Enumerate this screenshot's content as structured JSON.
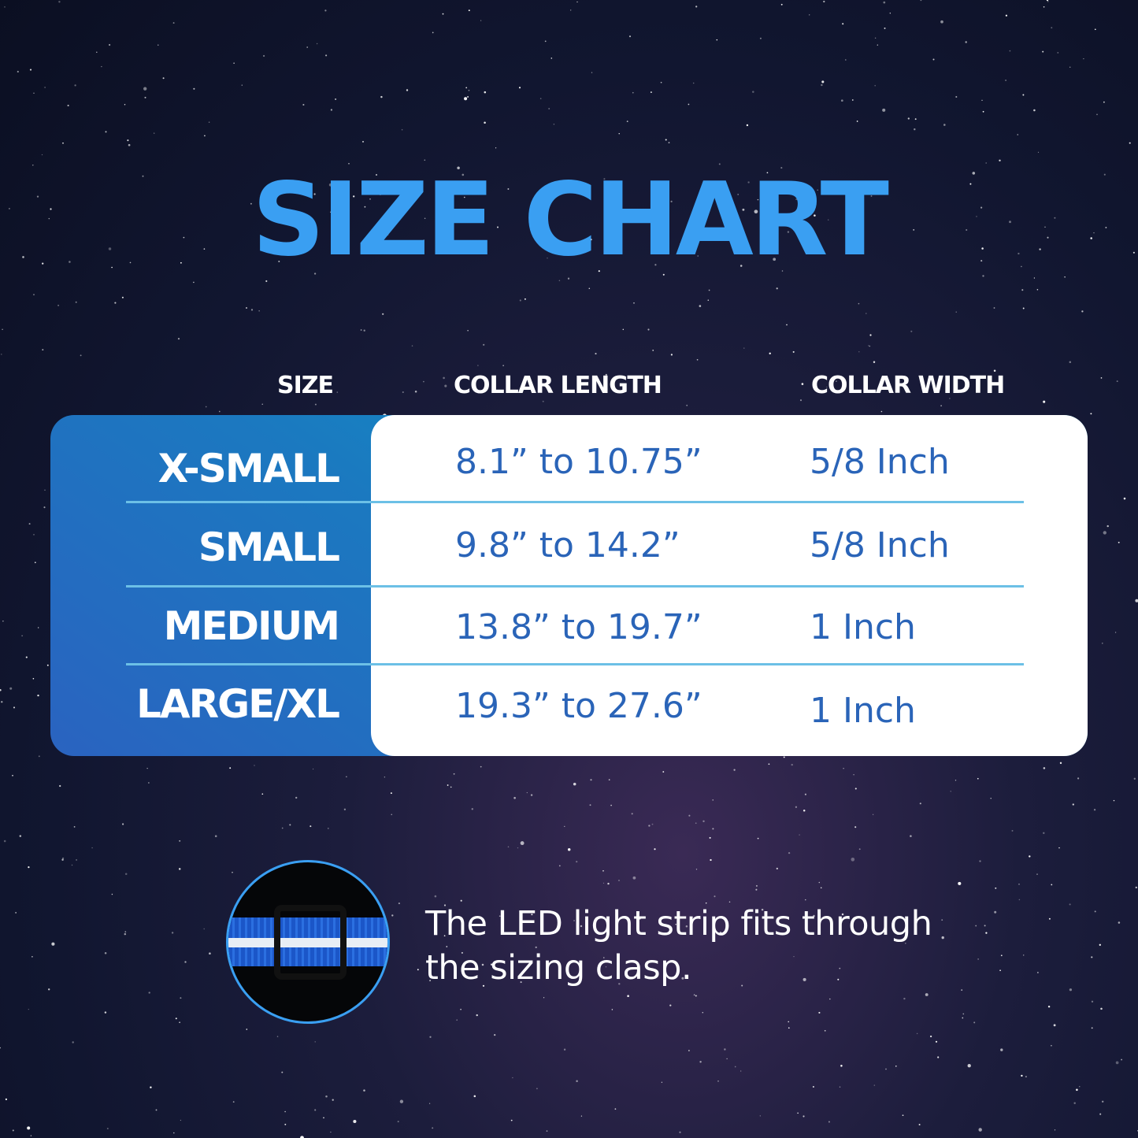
{
  "title": "SIZE CHART",
  "headers": {
    "size": "SIZE",
    "length": "COLLAR LENGTH",
    "width": "COLLAR WIDTH"
  },
  "rows": [
    {
      "size": "X-SMALL",
      "length": "8.1” to 10.75”",
      "width": "5/8 Inch"
    },
    {
      "size": "SMALL",
      "length": "9.8” to 14.2”",
      "width": "5/8 Inch"
    },
    {
      "size": "MEDIUM",
      "length": "13.8” to 19.7”",
      "width": "1 Inch"
    },
    {
      "size": "LARGE/XL",
      "length": "19.3” to 27.6”",
      "width": "1 Inch"
    }
  ],
  "note": {
    "line1": "The LED light strip fits through",
    "line2": "the sizing clasp."
  },
  "colors": {
    "title": "#3a9ff2",
    "value_text": "#2a64b8",
    "divider": "#6cc0e6"
  }
}
